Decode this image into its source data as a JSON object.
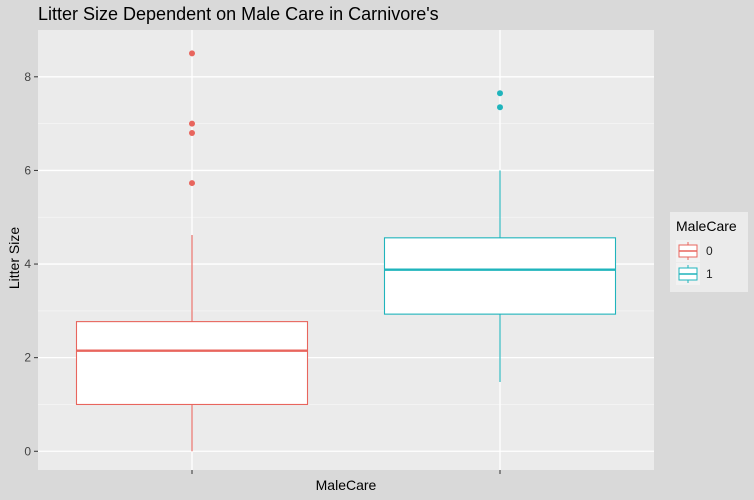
{
  "chart_data": {
    "type": "box",
    "title": "Litter Size Dependent on Male Care in Carnivore's",
    "xlabel": "MaleCare",
    "ylabel": "Litter Size",
    "ylim": [
      -0.4,
      9.0
    ],
    "yticks": [
      0,
      2,
      4,
      6,
      8
    ],
    "grid": true,
    "legend": {
      "title": "MaleCare",
      "position": "right",
      "entries": [
        {
          "label": "0",
          "color": "#e8655d"
        },
        {
          "label": "1",
          "color": "#1fb4bc"
        }
      ]
    },
    "series": [
      {
        "name": "0",
        "color": "#e8655d",
        "whisker_low": 0.0,
        "q1": 1.0,
        "median": 2.15,
        "q3": 2.77,
        "whisker_high": 4.62,
        "outliers": [
          5.73,
          6.8,
          7.0,
          8.5
        ]
      },
      {
        "name": "1",
        "color": "#1fb4bc",
        "whisker_low": 1.48,
        "q1": 2.93,
        "median": 3.88,
        "q3": 4.56,
        "whisker_high": 6.0,
        "outliers": [
          7.35,
          7.65
        ]
      }
    ]
  }
}
